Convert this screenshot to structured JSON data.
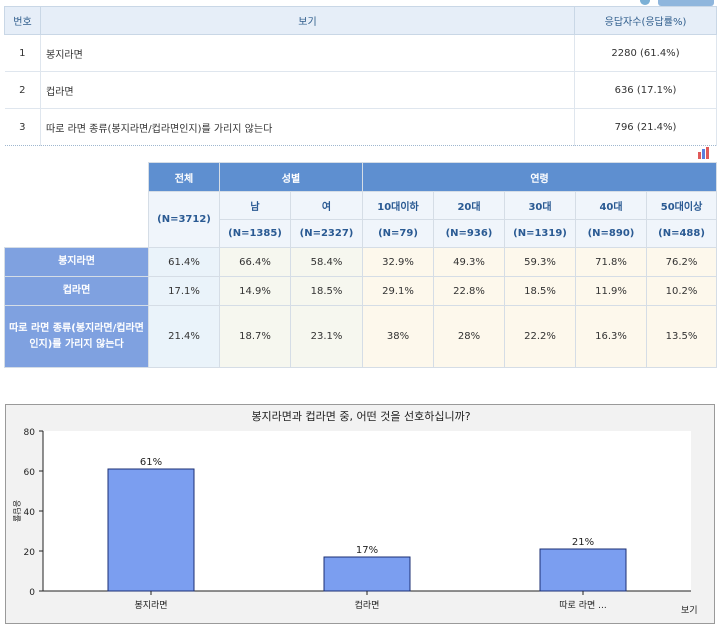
{
  "options_table": {
    "headers": {
      "number": "번호",
      "option": "보기",
      "responses": "응답자수(응답률%)"
    },
    "rows": [
      {
        "number": "1",
        "option": "봉지라면",
        "responses": "2280 (61.4%)"
      },
      {
        "number": "2",
        "option": "컵라면",
        "responses": "636 (17.1%)"
      },
      {
        "number": "3",
        "option": "따로 라면 종류(봉지라면/컵라면인지)를 가리지 않는다",
        "responses": "796 (21.4%)"
      }
    ]
  },
  "cross_table": {
    "group_headers": {
      "total": "전체",
      "gender": "성별",
      "age": "연령"
    },
    "total_n": "(N=3712)",
    "columns": [
      {
        "label": "남",
        "n": "(N=1385)"
      },
      {
        "label": "여",
        "n": "(N=2327)"
      },
      {
        "label": "10대이하",
        "n": "(N=79)"
      },
      {
        "label": "20대",
        "n": "(N=936)"
      },
      {
        "label": "30대",
        "n": "(N=1319)"
      },
      {
        "label": "40대",
        "n": "(N=890)"
      },
      {
        "label": "50대이상",
        "n": "(N=488)"
      }
    ],
    "rows": [
      {
        "label": "봉지라면",
        "values": [
          "61.4%",
          "66.4%",
          "58.4%",
          "32.9%",
          "49.3%",
          "59.3%",
          "71.8%",
          "76.2%"
        ]
      },
      {
        "label": "컵라면",
        "values": [
          "17.1%",
          "14.9%",
          "18.5%",
          "29.1%",
          "22.8%",
          "18.5%",
          "11.9%",
          "10.2%"
        ]
      },
      {
        "label": "따로 라면 종류(봉지라면/컵라면인지)를 가리지 않는다",
        "values": [
          "21.4%",
          "18.7%",
          "23.1%",
          "38%",
          "28%",
          "22.2%",
          "16.3%",
          "13.5%"
        ]
      }
    ]
  },
  "chart_data": {
    "type": "bar",
    "title": "봉지라면과 컵라면 중, 어떤 것을 선호하십니까?",
    "categories": [
      "봉지라면",
      "컵라면",
      "따로 라면 ..."
    ],
    "values": [
      61,
      17,
      21
    ],
    "data_labels": [
      "61%",
      "17%",
      "21%"
    ],
    "ylabel": "응답률",
    "xlabel": "보기",
    "ylim": [
      0,
      80
    ],
    "yticks": [
      "0",
      "20",
      "40",
      "60",
      "80"
    ],
    "grid": false,
    "bar_color": "#7b9ef0"
  }
}
